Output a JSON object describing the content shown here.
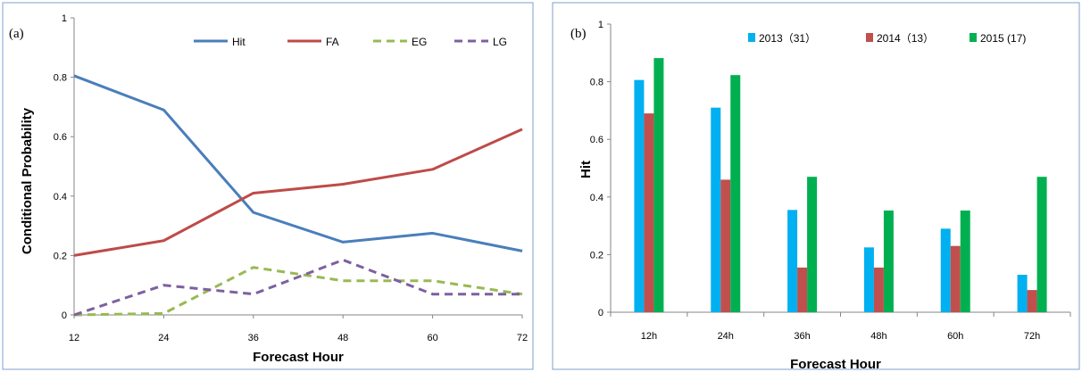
{
  "chart_data": [
    {
      "type": "line",
      "panel_label": "(a)",
      "x": [
        12,
        24,
        36,
        48,
        60,
        72
      ],
      "xlabel": "Forecast  Hour",
      "ylabel": "Conditional  Probability",
      "xlim": [
        12,
        72
      ],
      "ylim": [
        0,
        1
      ],
      "y_ticks": [
        "0",
        "0.2",
        "0.4",
        "0.6",
        "0.8",
        "1"
      ],
      "x_ticks": [
        "12",
        "24",
        "36",
        "48",
        "60",
        "72"
      ],
      "grid": false,
      "legend_position": "top-right",
      "series": [
        {
          "name": "Hit",
          "color": "#4a7ebb",
          "dashed": false,
          "values": [
            0.805,
            0.69,
            0.345,
            0.245,
            0.275,
            0.215
          ]
        },
        {
          "name": "FA",
          "color": "#be4b48",
          "dashed": false,
          "values": [
            0.2,
            0.25,
            0.41,
            0.44,
            0.49,
            0.625
          ]
        },
        {
          "name": "EG",
          "color": "#98b954",
          "dashed": true,
          "values": [
            0.0,
            0.005,
            0.16,
            0.115,
            0.115,
            0.07
          ]
        },
        {
          "name": "LG",
          "color": "#7d60a0",
          "dashed": true,
          "values": [
            0.0,
            0.1,
            0.07,
            0.185,
            0.07,
            0.07
          ]
        }
      ]
    },
    {
      "type": "bar",
      "panel_label": "(b)",
      "categories": [
        "12h",
        "24h",
        "36h",
        "48h",
        "60h",
        "72h"
      ],
      "xlabel": "Forecast  Hour",
      "ylabel": "Hit",
      "ylim": [
        0,
        1
      ],
      "y_ticks": [
        "0",
        "0.2",
        "0.4",
        "0.6",
        "0.8",
        "1"
      ],
      "grid": false,
      "legend_position": "top",
      "series": [
        {
          "name": "2013（31）",
          "color": "#00b0f0",
          "values": [
            0.806,
            0.71,
            0.355,
            0.225,
            0.29,
            0.13
          ]
        },
        {
          "name": "2014（13）",
          "color": "#c0504d",
          "values": [
            0.69,
            0.46,
            0.155,
            0.155,
            0.23,
            0.077
          ]
        },
        {
          "name": "2015 (17)",
          "color": "#00b050",
          "values": [
            0.882,
            0.823,
            0.47,
            0.353,
            0.353,
            0.47
          ]
        }
      ]
    }
  ]
}
